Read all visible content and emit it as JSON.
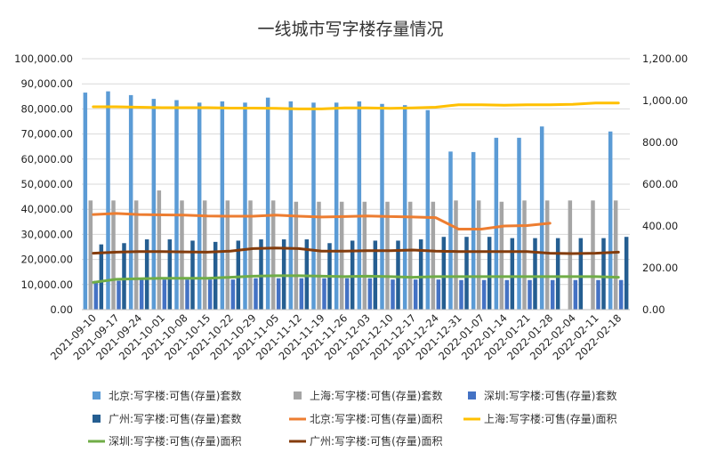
{
  "chart_data": {
    "type": "bar",
    "title": "一线城市写字楼存量情况",
    "categories": [
      "2021-09-10",
      "2021-09-17",
      "2021-09-24",
      "2021-10-01",
      "2021-10-08",
      "2021-10-15",
      "2021-10-22",
      "2021-10-29",
      "2021-11-05",
      "2021-11-12",
      "2021-11-19",
      "2021-11-26",
      "2021-12-03",
      "2021-12-10",
      "2021-12-17",
      "2021-12-24",
      "2021-12-31",
      "2022-01-07",
      "2022-01-14",
      "2022-01-21",
      "2022-01-28",
      "2022-02-04",
      "2022-02-11",
      "2022-02-18"
    ],
    "y_left": {
      "min": 0,
      "max": 100000,
      "step": 10000,
      "tick_labels": [
        "0.00",
        "10,000.00",
        "20,000.00",
        "30,000.00",
        "40,000.00",
        "50,000.00",
        "60,000.00",
        "70,000.00",
        "80,000.00",
        "90,000.00",
        "100,000.00"
      ]
    },
    "y_right": {
      "min": 0,
      "max": 1200,
      "step": 200,
      "tick_labels": [
        "0.00",
        "200.00",
        "400.00",
        "600.00",
        "800.00",
        "1,000.00",
        "1,200.00"
      ]
    },
    "grid": true,
    "legend_position": "bottom",
    "series": [
      {
        "name": "北京:写字楼:可售(存量)套数",
        "kind": "bar",
        "axis": "left",
        "color": "#5b9bd5",
        "values": [
          86500,
          87000,
          85500,
          84000,
          83500,
          82500,
          83000,
          82500,
          84500,
          83000,
          82500,
          82500,
          83000,
          82000,
          81500,
          79500,
          63000,
          62800,
          68500,
          68500,
          73000,
          null,
          null,
          71000
        ]
      },
      {
        "name": "上海:写字楼:可售(存量)套数",
        "kind": "bar",
        "axis": "left",
        "color": "#a5a5a5",
        "values": [
          43500,
          43500,
          43500,
          47500,
          43500,
          43500,
          43500,
          43500,
          43500,
          43000,
          43000,
          43000,
          43000,
          43000,
          43000,
          43000,
          43500,
          43500,
          43000,
          43500,
          43500,
          43500,
          43500,
          43500
        ]
      },
      {
        "name": "深圳:写字楼:可售(存量)套数",
        "kind": "bar",
        "axis": "left",
        "color": "#4472c4",
        "values": [
          11500,
          11500,
          12000,
          12000,
          12000,
          12000,
          12000,
          12500,
          12500,
          12500,
          12500,
          12500,
          12500,
          12000,
          12000,
          12000,
          11800,
          11800,
          11800,
          11800,
          11800,
          11800,
          11800,
          11800
        ]
      },
      {
        "name": "广州:写字楼:可售(存量)套数",
        "kind": "bar",
        "axis": "left",
        "color": "#255e91",
        "values": [
          26000,
          26500,
          28000,
          28000,
          27500,
          27000,
          27500,
          28000,
          28000,
          28000,
          26500,
          27500,
          27500,
          27500,
          28000,
          29000,
          29000,
          29000,
          28500,
          28500,
          28500,
          28500,
          28500,
          29000
        ]
      },
      {
        "name": "北京:写字楼:可售(存量)面积",
        "kind": "line",
        "axis": "right",
        "color": "#ed7d31",
        "values": [
          455,
          460,
          455,
          453,
          452,
          448,
          447,
          447,
          452,
          447,
          443,
          445,
          448,
          445,
          443,
          440,
          385,
          385,
          400,
          402,
          413,
          null,
          null,
          null
        ]
      },
      {
        "name": "上海:写字楼:可售(存量)面积",
        "kind": "line",
        "axis": "right",
        "color": "#ffc000",
        "values": [
          970,
          970,
          968,
          966,
          966,
          966,
          964,
          964,
          963,
          960,
          960,
          965,
          965,
          963,
          965,
          968,
          980,
          980,
          978,
          980,
          980,
          982,
          988,
          988
        ]
      },
      {
        "name": "深圳:写字楼:可售(存量)面积",
        "kind": "line",
        "axis": "right",
        "color": "#70ad47",
        "values": [
          130,
          145,
          148,
          150,
          150,
          150,
          155,
          160,
          162,
          162,
          160,
          158,
          160,
          158,
          155,
          158,
          158,
          158,
          158,
          158,
          158,
          158,
          158,
          155
        ]
      },
      {
        "name": "广州:写字楼:可售(存量)面积",
        "kind": "line",
        "axis": "right",
        "color": "#843c0c",
        "values": [
          270,
          275,
          278,
          278,
          276,
          275,
          280,
          292,
          295,
          292,
          280,
          280,
          282,
          282,
          285,
          280,
          278,
          278,
          278,
          278,
          270,
          268,
          270,
          275
        ]
      }
    ]
  }
}
